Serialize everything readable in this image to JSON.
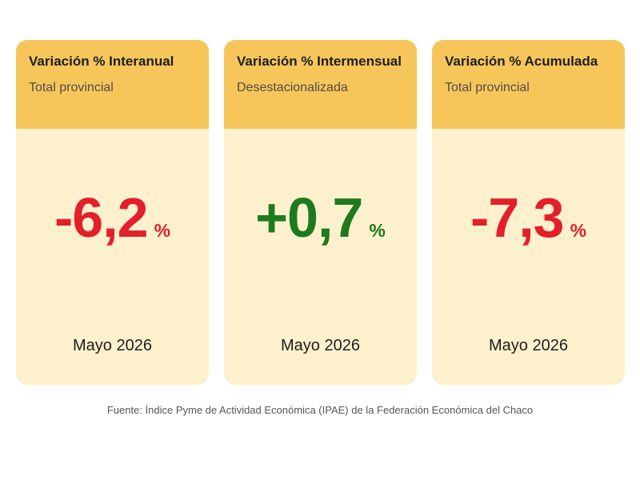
{
  "cards": [
    {
      "title": "Variación % Interanual",
      "subtitle": "Total provincial",
      "value": "-6,2",
      "unit": "%",
      "period": "Mayo 2026",
      "value_color": "#e3202a"
    },
    {
      "title": "Variación % Intermensual",
      "subtitle": "Desestacionalizada",
      "value": "+0,7",
      "unit": "%",
      "period": "Mayo 2026",
      "value_color": "#1e7a1e"
    },
    {
      "title": "Variación % Acumulada",
      "subtitle": "Total provincial",
      "value": "-7,3",
      "unit": "%",
      "period": "Mayo 2026",
      "value_color": "#e3202a"
    }
  ],
  "colors": {
    "header_bg": "#f7c65a",
    "card_bg": "#fcf0cd",
    "negative": "#e3202a",
    "positive": "#1e7a1e"
  },
  "source": "Fuente: Índice Pyme de Actividad Económica (IPAE) de la Federación Económica del Chaco"
}
